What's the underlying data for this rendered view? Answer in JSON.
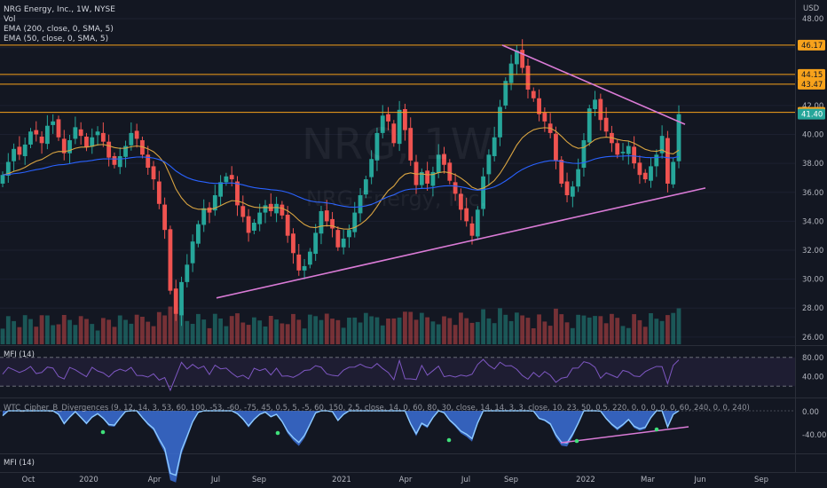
{
  "header": {
    "symbol_line": "NRG Energy, Inc., 1W, NYSE",
    "vol_label": "Vol",
    "ema200_label": "EMA (200, close, 0, SMA, 5)",
    "ema50_label": "EMA (50, close, 0, SMA, 5)"
  },
  "watermark": {
    "ticker": "NRG, 1W",
    "company": "NRG Energy, Inc."
  },
  "currency": "USD",
  "panes": {
    "mfi_label": "MFI (14)",
    "osc_label": "WTC_Cipher_B_Divergences (9, 12, 14, 3, 53, 60, 100, -53, -60, -75, 45, 0.5, 5, -5, 60, 150, 2.5, close, 14, 0, 60, 80, 30, close, 14, 14, 3, 3, close, 10, 23, 50, 0.5, 220, 0, 0, 0, 0, 0, 60, 240, 0, 0, 240)",
    "mfi2_label": "MFI (14)",
    "mfi_ticks": [
      "80.00",
      "40.00"
    ],
    "osc_ticks": [
      "0.00",
      "-40.00"
    ]
  },
  "colors": {
    "background": "#131722",
    "up": "#26a69a",
    "down": "#ef5350",
    "ema50": "#d9a441",
    "ema200": "#2962ff",
    "trendline": "#da7bd6",
    "hline": "#f7a21b",
    "mfi_line": "#7e57c2"
  },
  "chart_data": {
    "type": "candlestick",
    "interval": "1W",
    "y_axis": {
      "ticks": [
        "48.00",
        "46.00",
        "44.00",
        "42.00",
        "40.00",
        "38.00",
        "36.00",
        "34.00",
        "32.00",
        "30.00",
        "28.00",
        "26.00"
      ],
      "range": [
        25.5,
        48.8
      ]
    },
    "x_axis": {
      "ticks": [
        "Oct",
        "2020",
        "Apr",
        "Jul",
        "Sep",
        "2021",
        "Apr",
        "Jul",
        "Sep",
        "2022",
        "Mar",
        "Jun",
        "Sep"
      ]
    },
    "price_levels": [
      {
        "label": "46.17",
        "value": 46.17
      },
      {
        "label": "44.15",
        "value": 44.15
      },
      {
        "label": "43.47",
        "value": 43.47
      },
      {
        "label": "41.53",
        "value": 41.53
      },
      {
        "label": "41.40",
        "value": 41.4,
        "current": true
      }
    ],
    "trendlines": [
      {
        "name": "support",
        "from": [
          "2020-07-27",
          28.7
        ],
        "to": [
          "2022-05-02",
          36.3
        ]
      },
      {
        "name": "resistance",
        "from": [
          "2021-08-23",
          46.17
        ],
        "to": [
          "2022-04-11",
          40.7
        ]
      }
    ],
    "candle_closes_approx": [
      37.2,
      38.1,
      39.0,
      38.6,
      39.3,
      40.2,
      40.0,
      39.4,
      40.6,
      40.9,
      39.8,
      38.7,
      39.6,
      40.5,
      39.9,
      39.1,
      39.8,
      40.2,
      39.5,
      38.4,
      37.9,
      38.5,
      39.2,
      40.1,
      39.7,
      38.6,
      37.7,
      36.9,
      35.2,
      33.4,
      29.2,
      27.6,
      29.8,
      31.0,
      32.6,
      33.8,
      34.9,
      34.6,
      35.8,
      36.7,
      37.1,
      36.9,
      35.1,
      34.3,
      33.2,
      33.9,
      34.6,
      35.1,
      34.7,
      35.2,
      34.4,
      33.0,
      31.8,
      30.6,
      30.9,
      31.9,
      33.2,
      34.7,
      34.0,
      33.5,
      32.2,
      32.8,
      33.4,
      34.6,
      35.8,
      36.9,
      38.3,
      40.1,
      41.3,
      40.9,
      39.4,
      41.7,
      40.3,
      38.2,
      36.5,
      37.4,
      36.6,
      37.4,
      38.6,
      37.9,
      36.8,
      35.9,
      34.8,
      34.0,
      33.0,
      34.8,
      37.1,
      38.6,
      39.8,
      41.9,
      43.7,
      44.9,
      45.8,
      44.6,
      43.1,
      42.5,
      41.4,
      40.9,
      40.1,
      38.2,
      36.6,
      35.8,
      36.4,
      37.6,
      39.6,
      41.8,
      42.4,
      41.0,
      40.2,
      39.4,
      38.6,
      38.8,
      39.2,
      38.0,
      37.2,
      36.9,
      37.8,
      38.6,
      39.9,
      36.6,
      38.1,
      41.4
    ]
  }
}
